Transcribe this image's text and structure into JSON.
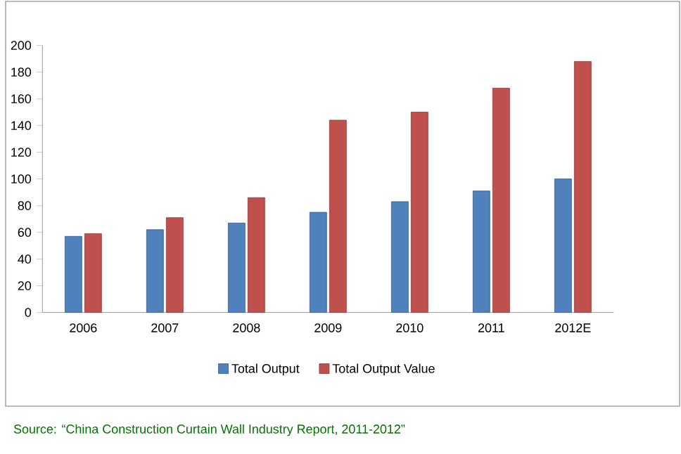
{
  "chart_data": {
    "type": "bar",
    "categories": [
      "2006",
      "2007",
      "2008",
      "2009",
      "2010",
      "2011",
      "2012E"
    ],
    "series": [
      {
        "name": "Total Output",
        "color": "#4f81bd",
        "values": [
          57,
          62,
          67,
          75,
          83,
          91,
          100
        ]
      },
      {
        "name": "Total Output Value",
        "color": "#c0504d",
        "values": [
          59,
          71,
          86,
          144,
          150,
          168,
          188
        ]
      }
    ],
    "ylim": [
      0,
      200
    ],
    "yticks": [
      0,
      20,
      40,
      60,
      80,
      100,
      120,
      140,
      160,
      180,
      200
    ],
    "grid": false,
    "legend": "bottom",
    "annotations": [
      "Source: “China Construction  Curtain Wall Industry Report, 2011-2012”"
    ]
  }
}
